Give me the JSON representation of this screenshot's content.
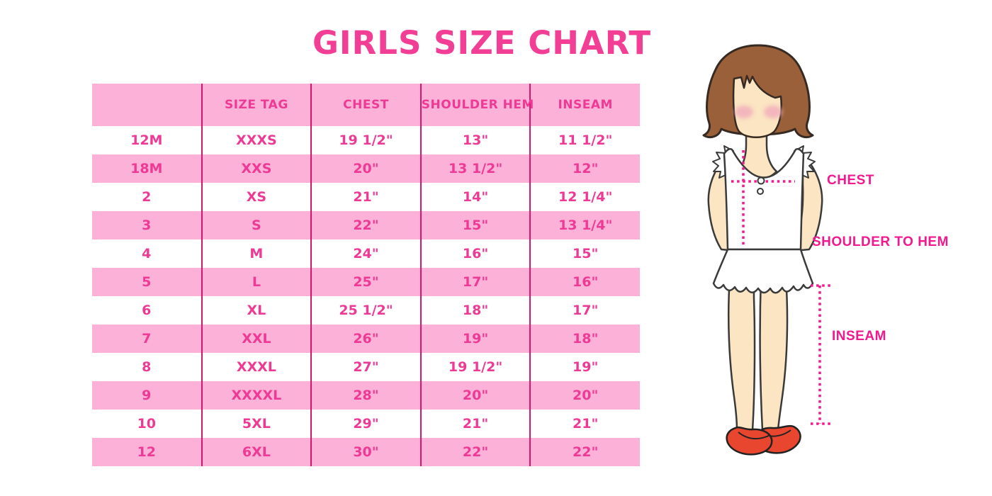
{
  "title": "GIRLS SIZE CHART",
  "chart_data": {
    "type": "table",
    "title": "GIRLS SIZE CHART",
    "columns": [
      "",
      "SIZE TAG",
      "CHEST",
      "SHOULDER HEM",
      "INSEAM"
    ],
    "rows": [
      [
        "12M",
        "XXXS",
        "19 1/2\"",
        "13\"",
        "11 1/2\""
      ],
      [
        "18M",
        "XXS",
        "20\"",
        "13 1/2\"",
        "12\""
      ],
      [
        "2",
        "XS",
        "21\"",
        "14\"",
        "12 1/4\""
      ],
      [
        "3",
        "S",
        "22\"",
        "15\"",
        "13 1/4\""
      ],
      [
        "4",
        "M",
        "24\"",
        "16\"",
        "15\""
      ],
      [
        "5",
        "L",
        "25\"",
        "17\"",
        "16\""
      ],
      [
        "6",
        "XL",
        "25 1/2\"",
        "18\"",
        "17\""
      ],
      [
        "7",
        "XXL",
        "26\"",
        "19\"",
        "18\""
      ],
      [
        "8",
        "XXXL",
        "27\"",
        "19 1/2\"",
        "19\""
      ],
      [
        "9",
        "XXXXL",
        "28\"",
        "20\"",
        "20\""
      ],
      [
        "10",
        "5XL",
        "29\"",
        "21\"",
        "21\""
      ],
      [
        "12",
        "6XL",
        "30\"",
        "22\"",
        "22\""
      ]
    ],
    "layout": {
      "zebra_striping": "odd rows pink",
      "grid": "vertical column separators only"
    }
  },
  "figure": {
    "description": "illustrated girl with measurement guide lines",
    "labels": {
      "chest": "CHEST",
      "shoulder_to_hem": "SHOULDER TO HEM",
      "inseam": "INSEAM"
    }
  },
  "colors": {
    "title_pink": "#F23E95",
    "row_pink": "#FBB1D8",
    "cell_text_pink": "#EE3A95",
    "column_line": "#D6156F",
    "measure_magenta": "#F2188E",
    "skin": "#FBE5C2",
    "hair_brown": "#9A6039",
    "shoe_red": "#E8462F",
    "background": "#FFFFFF"
  }
}
